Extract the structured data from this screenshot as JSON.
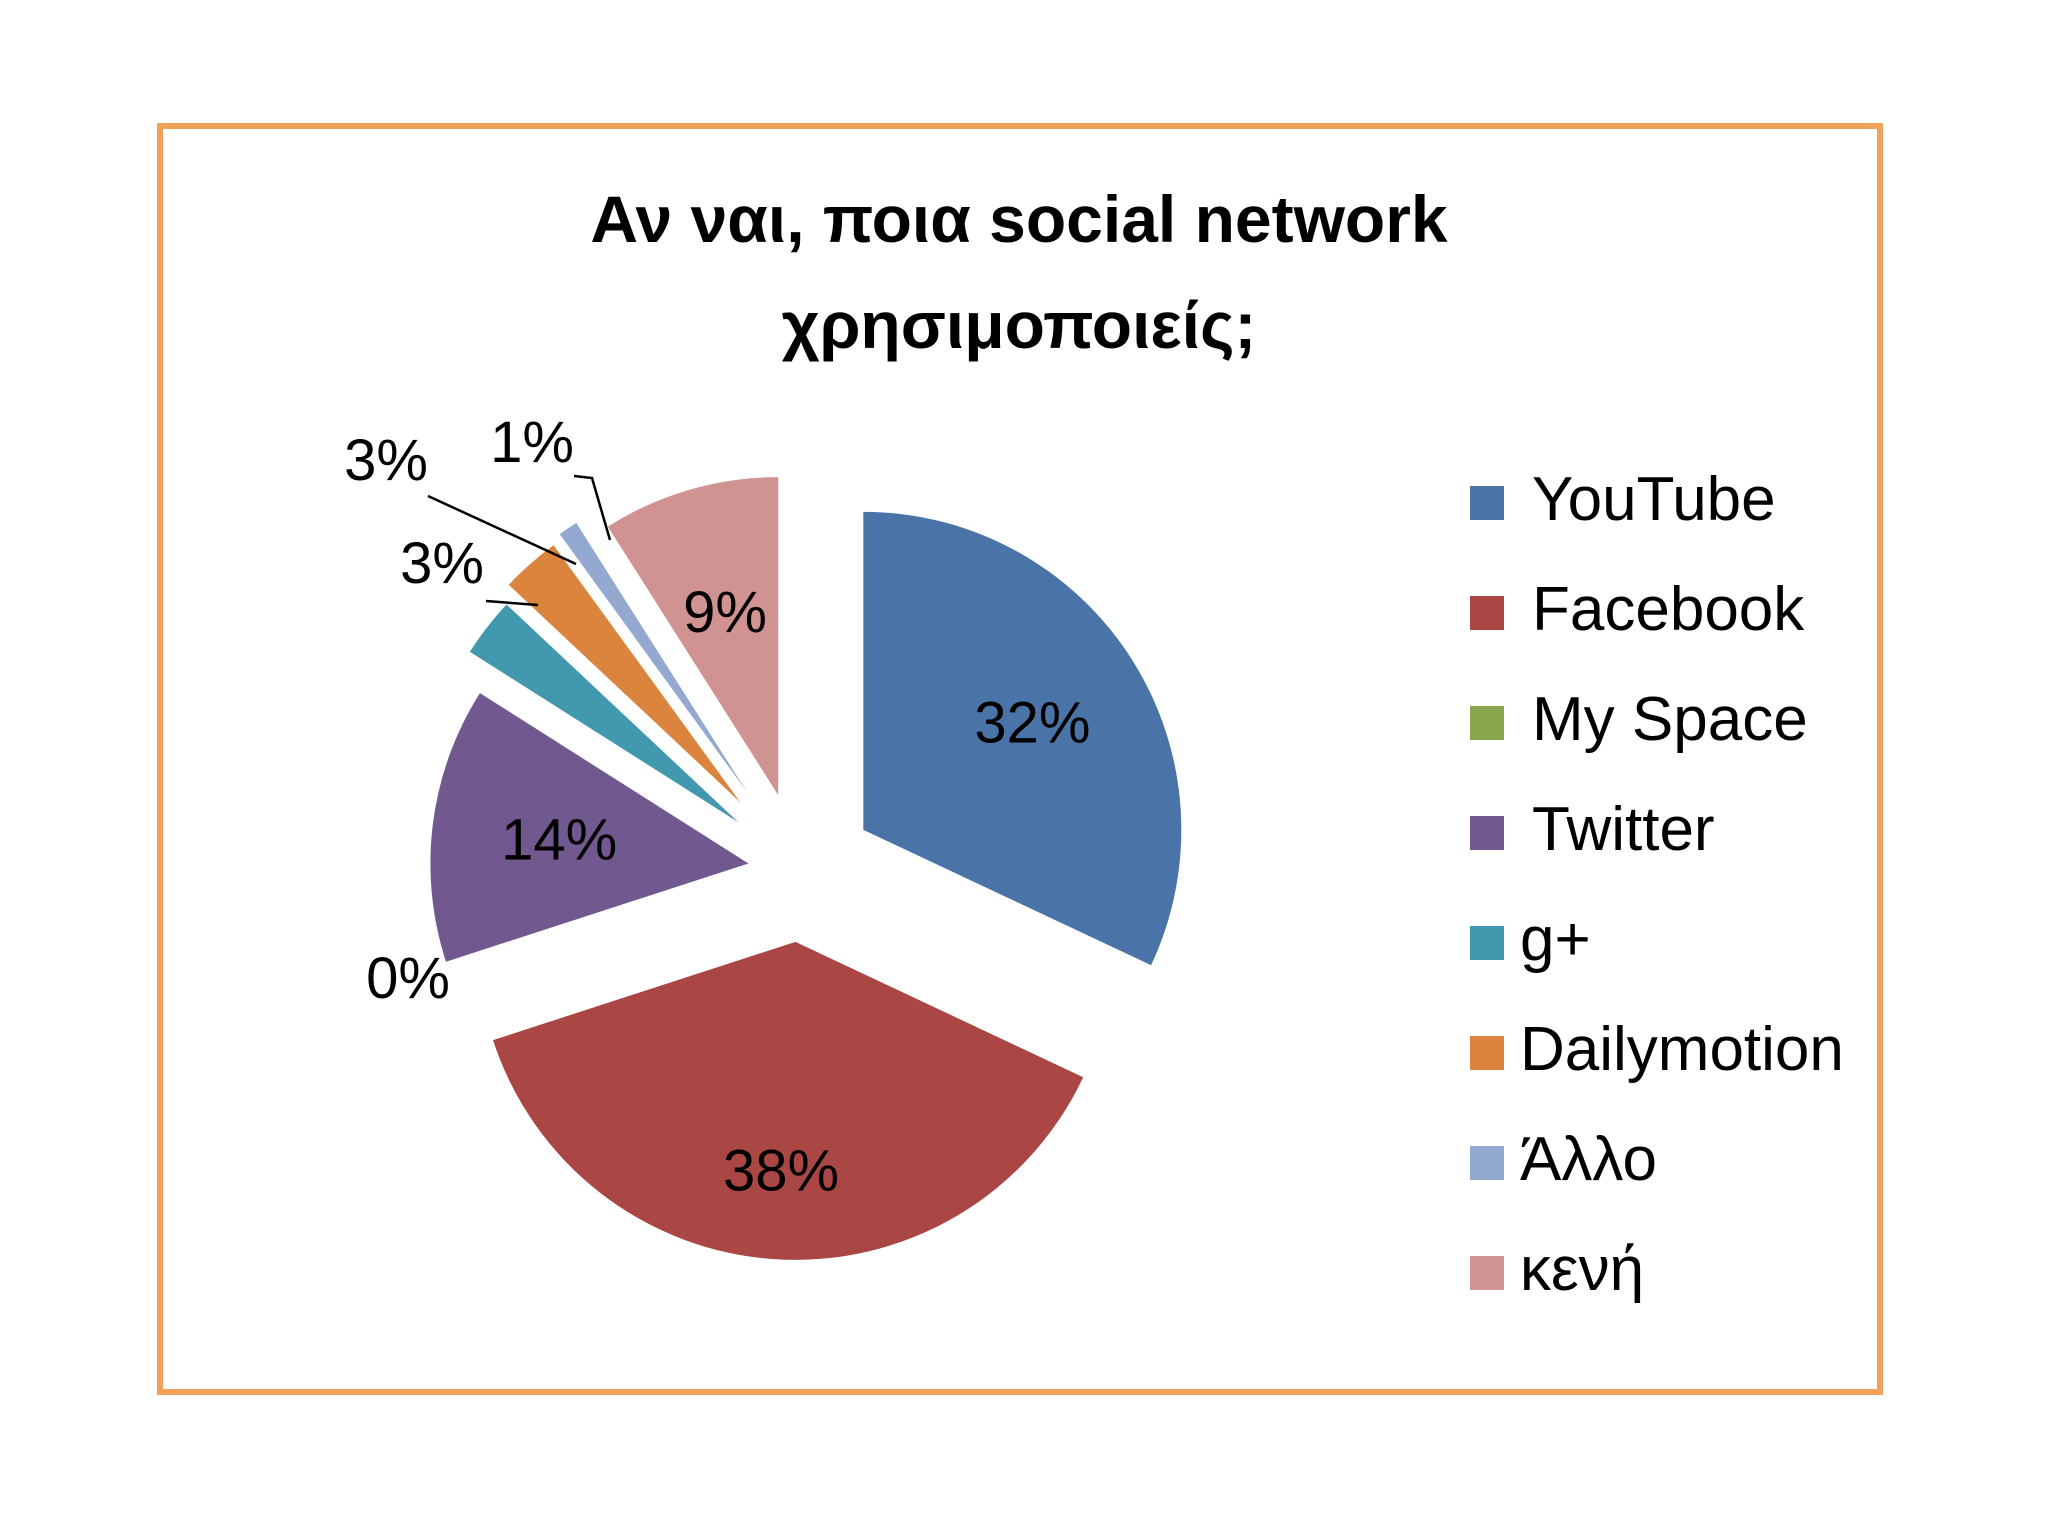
{
  "chart_data": {
    "type": "pie",
    "title_lines": [
      "Αν ναι, ποια social network",
      "χρησιμοποιείς;"
    ],
    "categories": [
      "YouTube",
      "Facebook",
      "My Space",
      "Twitter",
      "g+",
      "Dailymotion",
      "Άλλο",
      "κενή"
    ],
    "values": [
      32,
      38,
      0,
      14,
      3,
      3,
      1,
      9
    ],
    "labels": [
      "32%",
      "38%",
      "0%",
      "14%",
      "3%",
      "3%",
      "1%",
      "9%"
    ],
    "unit": "%",
    "exploded": true,
    "legend_position": "right",
    "colors": [
      "#4A73A8",
      "#AA4644",
      "#89A54E",
      "#71588F",
      "#4198AF",
      "#DB843D",
      "#93A9CF",
      "#D19392"
    ]
  },
  "frame_color": "#F0A15A"
}
